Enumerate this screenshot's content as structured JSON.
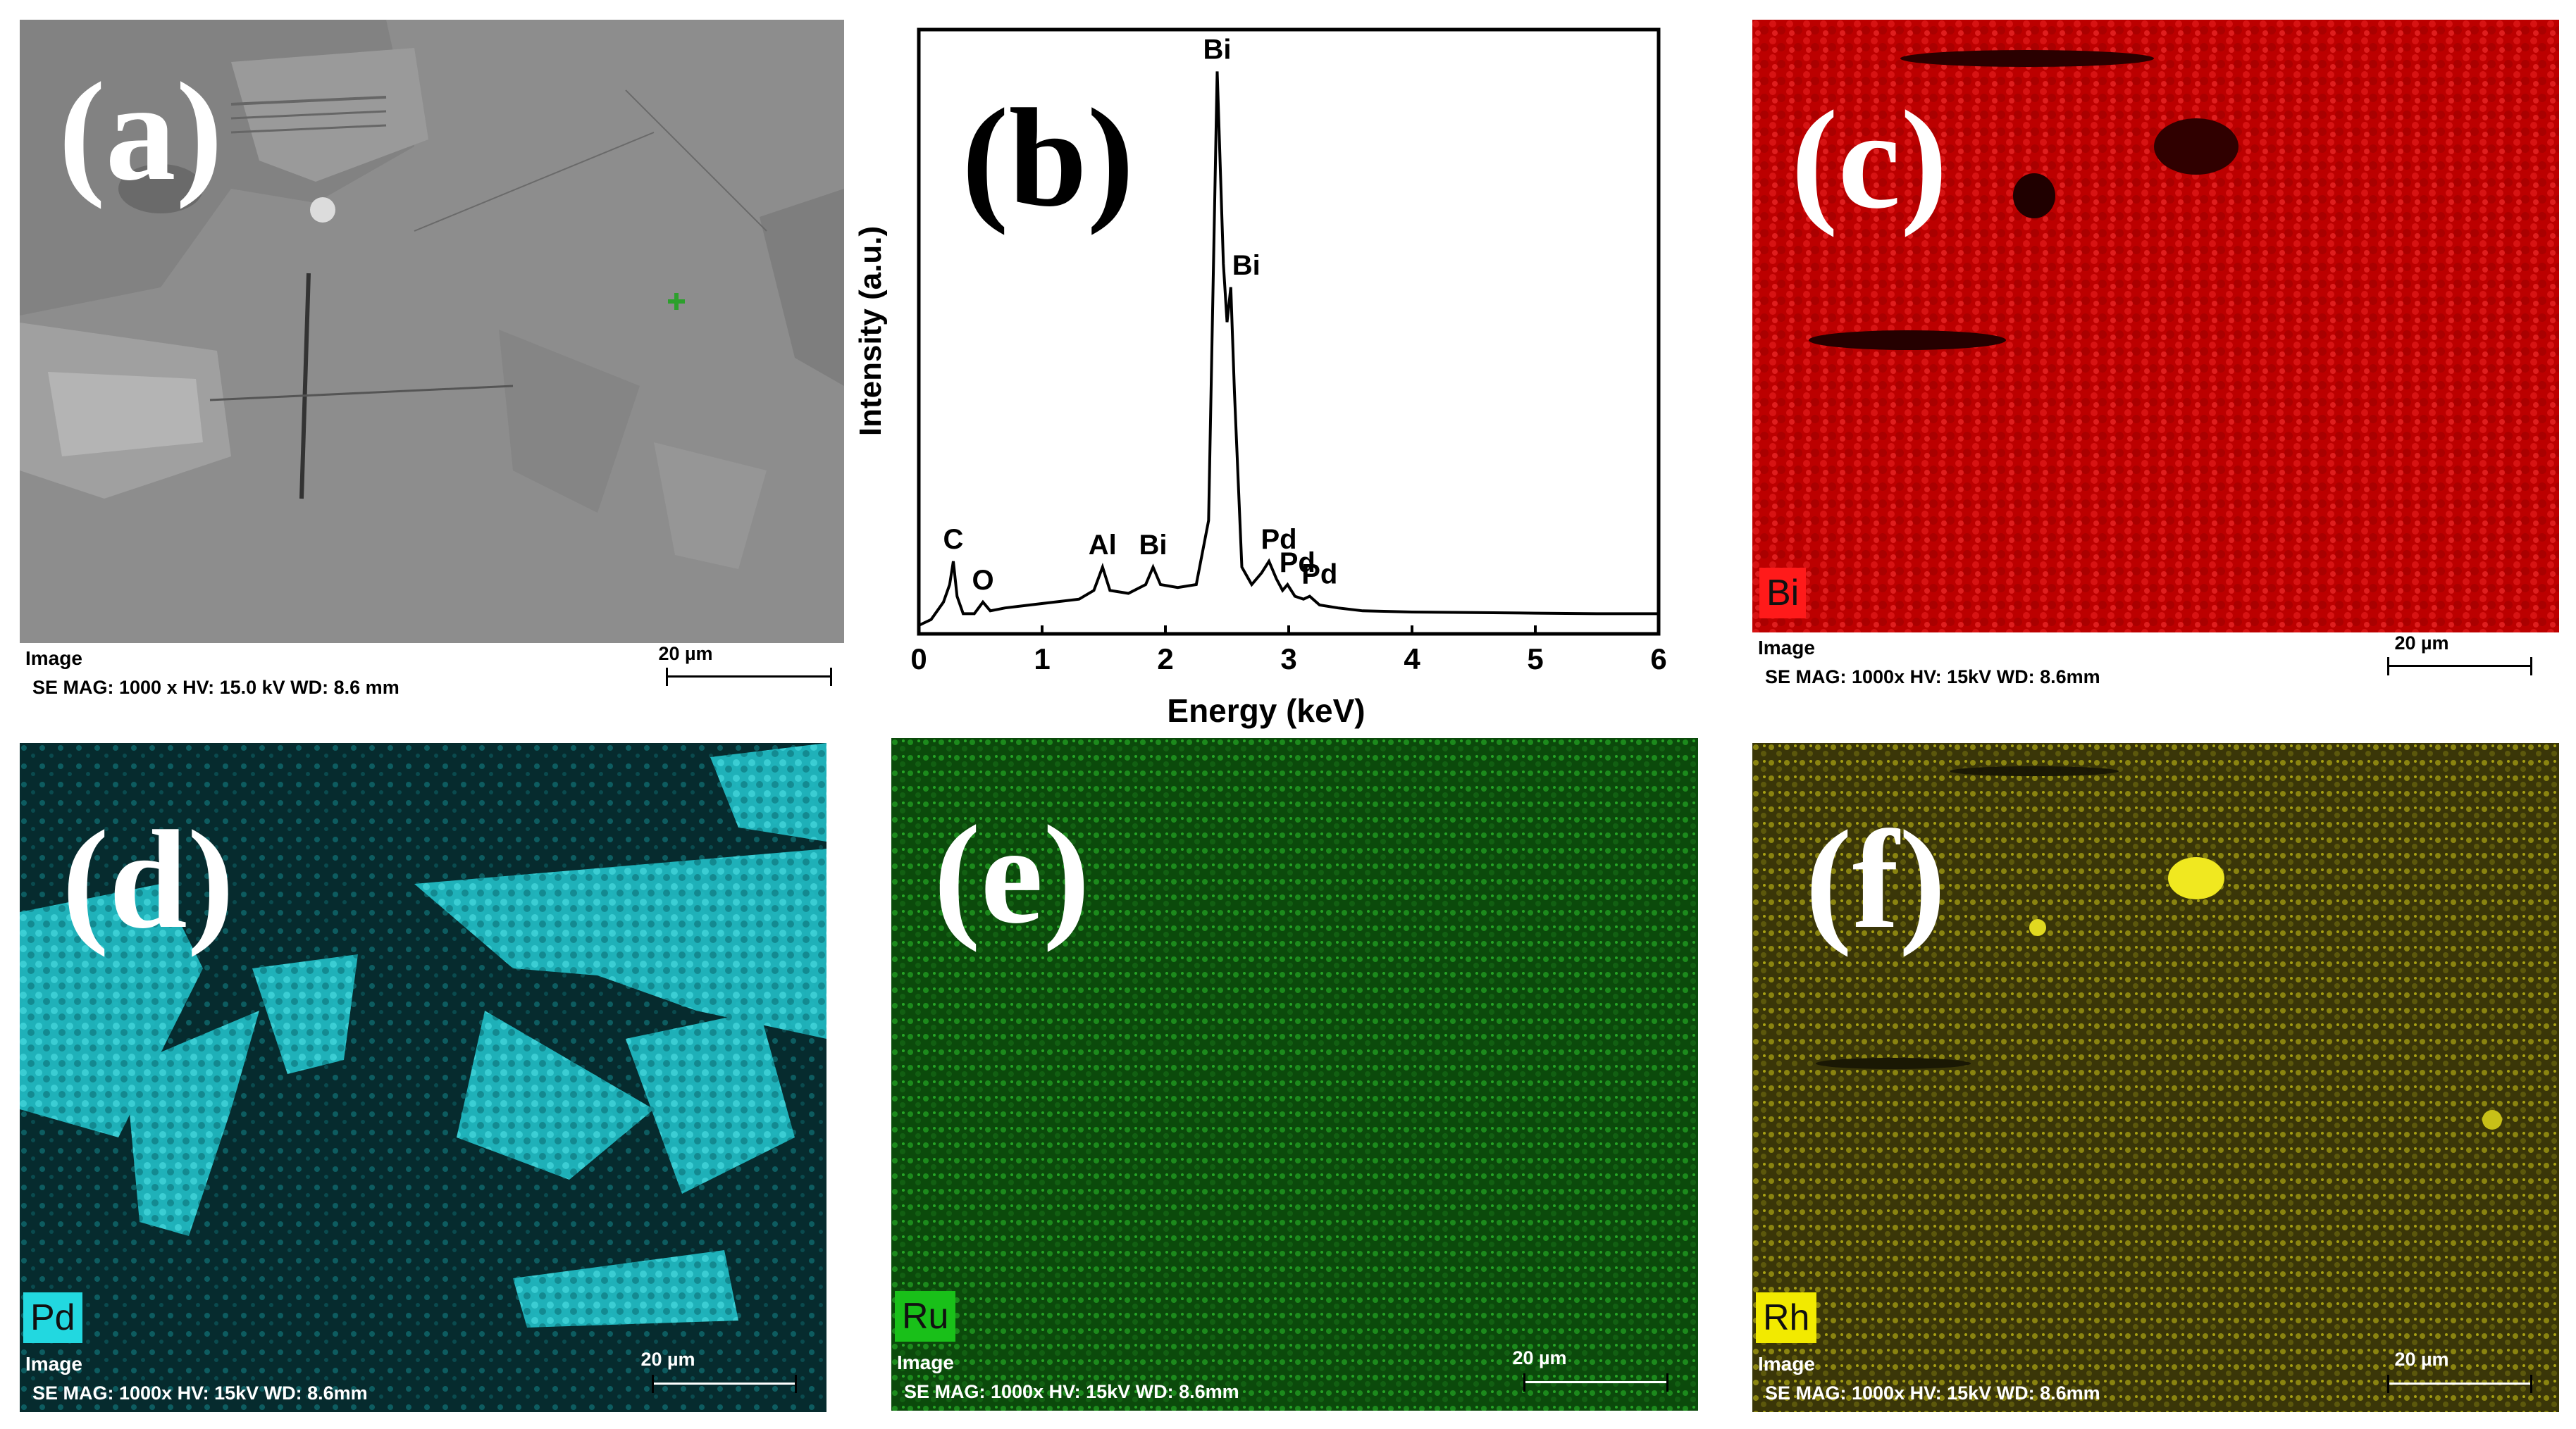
{
  "panels": {
    "a": {
      "label": "(a)",
      "info_line1": "Image",
      "info_line2": "SE  MAG: 1000 x  HV: 15.0 kV  WD: 8.6 mm",
      "scale_bar": "20 µm"
    },
    "b": {
      "label": "(b)"
    },
    "c": {
      "label": "(c)",
      "element": "Bi",
      "color": "#d01010",
      "info_line1": "Image",
      "info_line2": "SE  MAG: 1000x  HV: 15kV  WD: 8.6mm",
      "scale_bar": "20 µm"
    },
    "d": {
      "label": "(d)",
      "element": "Pd",
      "color": "#20c8d0",
      "info_line1": "Image",
      "info_line2": "SE  MAG: 1000x  HV: 15kV  WD: 8.6mm",
      "scale_bar": "20 µm"
    },
    "e": {
      "label": "(e)",
      "element": "Ru",
      "color": "#1fa81f",
      "info_line1": "Image",
      "info_line2": "SE  MAG: 1000x  HV: 15kV  WD: 8.6mm",
      "scale_bar": "20 µm"
    },
    "f": {
      "label": "(f)",
      "element": "Rh",
      "color": "#c8c000",
      "info_line1": "Image",
      "info_line2": "SE  MAG: 1000x  HV: 15kV  WD: 8.6mm",
      "scale_bar": "20 µm"
    }
  },
  "chart_data": {
    "type": "line",
    "title": "",
    "xlabel": "Energy (keV)",
    "ylabel": "Intensity (a.u.)",
    "xlim": [
      0,
      6
    ],
    "ylim": [
      0,
      100
    ],
    "xticks": [
      "0",
      "1",
      "2",
      "3",
      "4",
      "5",
      "6"
    ],
    "grid": false,
    "peaks": [
      {
        "label": "C",
        "x": 0.28,
        "y": 11
      },
      {
        "label": "O",
        "x": 0.52,
        "y": 4
      },
      {
        "label": "Al",
        "x": 1.49,
        "y": 10
      },
      {
        "label": "Bi",
        "x": 1.9,
        "y": 10
      },
      {
        "label": "Bi",
        "x": 2.42,
        "y": 95
      },
      {
        "label": "Bi",
        "x": 2.53,
        "y": 58
      },
      {
        "label": "Pd",
        "x": 2.84,
        "y": 11
      },
      {
        "label": "Pd",
        "x": 2.99,
        "y": 7
      },
      {
        "label": "Pd",
        "x": 3.17,
        "y": 5
      }
    ],
    "spectrum": {
      "x": [
        0.0,
        0.1,
        0.2,
        0.25,
        0.28,
        0.31,
        0.36,
        0.45,
        0.52,
        0.58,
        0.7,
        0.9,
        1.1,
        1.3,
        1.42,
        1.49,
        1.55,
        1.7,
        1.84,
        1.9,
        1.96,
        2.1,
        2.25,
        2.35,
        2.42,
        2.47,
        2.5,
        2.53,
        2.56,
        2.62,
        2.7,
        2.78,
        2.84,
        2.9,
        2.95,
        2.99,
        3.05,
        3.12,
        3.17,
        3.25,
        3.4,
        3.6,
        4.0,
        4.5,
        5.0,
        5.5,
        6.0
      ],
      "y": [
        0,
        1,
        4,
        7,
        11,
        5,
        2,
        2,
        4,
        2.5,
        3,
        3.5,
        4,
        4.5,
        6,
        10,
        6,
        5.5,
        7,
        10,
        7,
        6.5,
        7,
        18,
        95,
        62,
        52,
        58,
        40,
        10,
        7,
        9,
        11,
        8,
        6,
        7,
        5,
        4.5,
        5,
        3.5,
        3,
        2.5,
        2.3,
        2.2,
        2.1,
        2.0,
        2.0
      ]
    }
  }
}
